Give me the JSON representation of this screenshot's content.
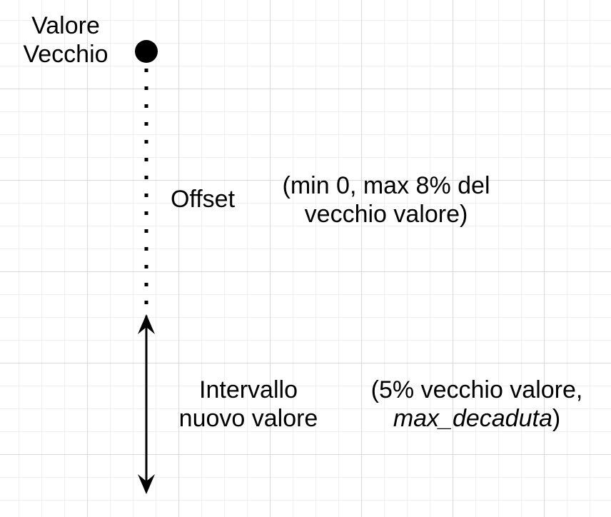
{
  "old_value_label": {
    "line1": "Valore",
    "line2": "Vecchio"
  },
  "offset_label": "Offset",
  "offset_note": {
    "line1": "(min 0, max 8% del",
    "line2": "vecchio valore)"
  },
  "interval_label": {
    "line1": "Intervallo",
    "line2": "nuovo valore"
  },
  "interval_note": {
    "line1": "(5% vecchio valore,",
    "line2_italic": "max_decaduta",
    "line2_suffix": ")"
  },
  "colors": {
    "ink": "#000000",
    "grid_major": "#d9d9d9",
    "grid_minor": "#f0f0f0"
  }
}
